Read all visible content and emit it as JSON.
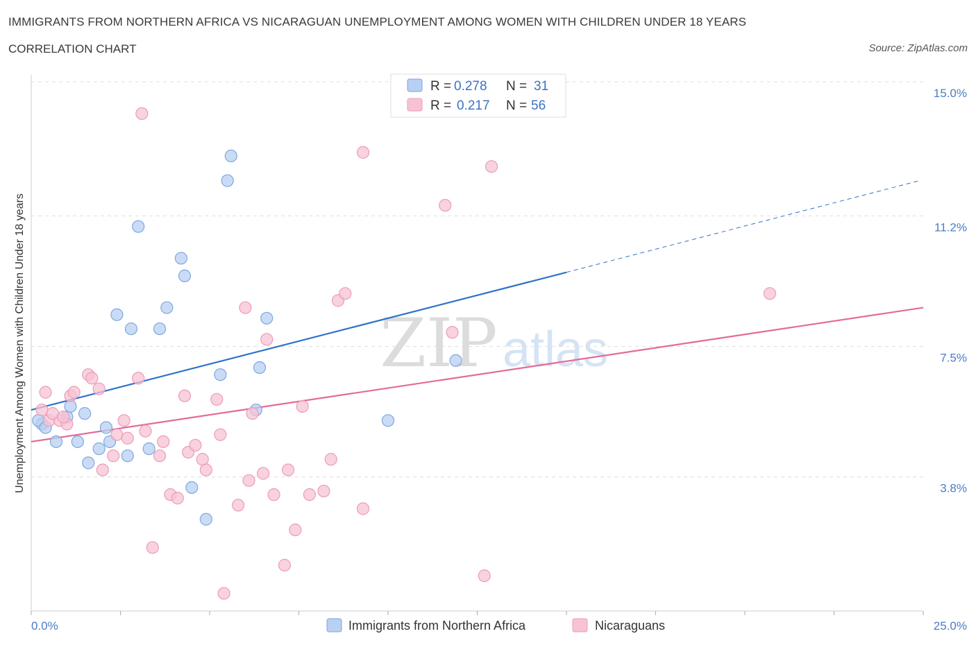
{
  "header": {
    "title": "IMMIGRANTS FROM NORTHERN AFRICA VS NICARAGUAN UNEMPLOYMENT AMONG WOMEN WITH CHILDREN UNDER 18 YEARS",
    "subtitle": "CORRELATION CHART",
    "source": "Source: ZipAtlas.com"
  },
  "watermark": {
    "zip": "ZIP",
    "atlas": "atlas"
  },
  "legend": {
    "series1": {
      "r_label": "R =",
      "r_value": "0.278",
      "n_label": "N =",
      "n_value": "31"
    },
    "series2": {
      "r_label": "R =",
      "r_value": "0.217",
      "n_label": "N =",
      "n_value": "56"
    }
  },
  "colors": {
    "blue_fill": "#b8d0f2",
    "blue_stroke": "#7ea6df",
    "blue_line": "#2f72c8",
    "pink_fill": "#f7c3d4",
    "pink_stroke": "#ec9bb7",
    "pink_line": "#e36a97",
    "grid": "#dedede",
    "axis_text": "#4a7cc8"
  },
  "chart_data": {
    "type": "scatter",
    "xlabel": "",
    "ylabel": "Unemployment Among Women with Children Under 18 years",
    "xlim": [
      0,
      25
    ],
    "ylim": [
      0,
      15
    ],
    "x_tick_labels": [
      "0.0%",
      "25.0%"
    ],
    "y_ticks": [
      3.8,
      7.5,
      11.2,
      15.0
    ],
    "y_tick_labels": [
      "3.8%",
      "7.5%",
      "11.2%",
      "15.0%"
    ],
    "legend_position": "top-center and bottom",
    "series": [
      {
        "name": "Immigrants from Northern Africa",
        "color": "#7ea6df",
        "points": [
          [
            0.3,
            5.3
          ],
          [
            0.7,
            4.8
          ],
          [
            1.0,
            5.5
          ],
          [
            1.1,
            5.8
          ],
          [
            1.3,
            4.8
          ],
          [
            1.5,
            5.6
          ],
          [
            1.6,
            4.2
          ],
          [
            1.9,
            4.6
          ],
          [
            2.1,
            5.2
          ],
          [
            2.2,
            4.8
          ],
          [
            2.4,
            8.4
          ],
          [
            2.7,
            4.4
          ],
          [
            2.8,
            8.0
          ],
          [
            3.0,
            10.9
          ],
          [
            3.3,
            4.6
          ],
          [
            3.6,
            8.0
          ],
          [
            3.8,
            8.6
          ],
          [
            4.2,
            10.0
          ],
          [
            4.3,
            9.5
          ],
          [
            4.5,
            3.5
          ],
          [
            4.9,
            2.6
          ],
          [
            5.3,
            6.7
          ],
          [
            5.5,
            12.2
          ],
          [
            5.6,
            12.9
          ],
          [
            6.3,
            5.7
          ],
          [
            6.4,
            6.9
          ],
          [
            6.6,
            8.3
          ],
          [
            10.0,
            5.4
          ],
          [
            11.9,
            7.1
          ],
          [
            0.2,
            5.4
          ],
          [
            0.4,
            5.2
          ]
        ]
      },
      {
        "name": "Nicaraguans",
        "color": "#ec9bb7",
        "points": [
          [
            0.3,
            5.7
          ],
          [
            0.4,
            6.2
          ],
          [
            0.5,
            5.4
          ],
          [
            0.8,
            5.4
          ],
          [
            1.0,
            5.3
          ],
          [
            1.1,
            6.1
          ],
          [
            1.2,
            6.2
          ],
          [
            1.6,
            6.7
          ],
          [
            1.7,
            6.6
          ],
          [
            1.9,
            6.3
          ],
          [
            2.0,
            4.0
          ],
          [
            2.3,
            4.4
          ],
          [
            2.4,
            5.0
          ],
          [
            2.6,
            5.4
          ],
          [
            2.7,
            4.9
          ],
          [
            3.0,
            6.6
          ],
          [
            3.1,
            14.1
          ],
          [
            3.2,
            5.1
          ],
          [
            3.4,
            1.8
          ],
          [
            3.6,
            4.4
          ],
          [
            3.7,
            4.8
          ],
          [
            3.9,
            3.3
          ],
          [
            4.1,
            3.2
          ],
          [
            4.3,
            6.1
          ],
          [
            4.4,
            4.5
          ],
          [
            4.6,
            4.7
          ],
          [
            4.8,
            4.3
          ],
          [
            4.9,
            4.0
          ],
          [
            5.2,
            6.0
          ],
          [
            5.3,
            5.0
          ],
          [
            5.4,
            0.5
          ],
          [
            5.8,
            3.0
          ],
          [
            6.0,
            8.6
          ],
          [
            6.1,
            3.7
          ],
          [
            6.2,
            5.6
          ],
          [
            6.5,
            3.9
          ],
          [
            6.6,
            7.7
          ],
          [
            6.8,
            3.3
          ],
          [
            7.1,
            1.3
          ],
          [
            7.2,
            4.0
          ],
          [
            7.4,
            2.3
          ],
          [
            7.6,
            5.8
          ],
          [
            7.8,
            3.3
          ],
          [
            8.2,
            3.4
          ],
          [
            8.4,
            4.3
          ],
          [
            8.6,
            8.8
          ],
          [
            8.8,
            9.0
          ],
          [
            9.3,
            2.9
          ],
          [
            9.3,
            13.0
          ],
          [
            11.6,
            11.5
          ],
          [
            11.8,
            7.9
          ],
          [
            12.7,
            1.0
          ],
          [
            12.9,
            12.6
          ],
          [
            20.7,
            9.0
          ],
          [
            0.6,
            5.6
          ],
          [
            0.9,
            5.5
          ]
        ]
      }
    ],
    "trend_lines": [
      {
        "series": "Immigrants from Northern Africa",
        "x": [
          0.0,
          15.0
        ],
        "y": [
          5.7,
          9.6
        ],
        "dashed_extension_to_x": 24.9,
        "dashed_extension_y": 12.2
      },
      {
        "series": "Nicaraguans",
        "x": [
          0.0,
          25.0
        ],
        "y": [
          4.8,
          8.6
        ]
      }
    ]
  }
}
